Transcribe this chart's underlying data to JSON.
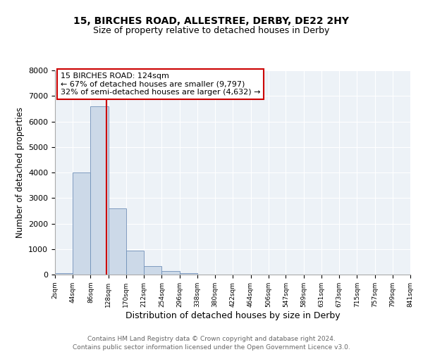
{
  "title": "15, BIRCHES ROAD, ALLESTREE, DERBY, DE22 2HY",
  "subtitle": "Size of property relative to detached houses in Derby",
  "xlabel": "Distribution of detached houses by size in Derby",
  "ylabel": "Number of detached properties",
  "bin_edges": [
    2,
    44,
    86,
    128,
    170,
    212,
    254,
    296,
    338,
    380,
    422,
    464,
    506,
    547,
    589,
    631,
    673,
    715,
    757,
    799,
    841
  ],
  "bin_heights": [
    50,
    4000,
    6600,
    2600,
    950,
    320,
    130,
    50,
    0,
    0,
    0,
    0,
    0,
    0,
    0,
    0,
    0,
    0,
    0,
    0
  ],
  "bar_color": "#ccd9e8",
  "bar_edge_color": "#7090b8",
  "property_line_x": 124,
  "property_line_color": "#cc0000",
  "annotation_title": "15 BIRCHES ROAD: 124sqm",
  "annotation_line1": "← 67% of detached houses are smaller (9,797)",
  "annotation_line2": "32% of semi-detached houses are larger (4,632) →",
  "annotation_box_edgecolor": "#cc0000",
  "ylim": [
    0,
    8000
  ],
  "yticks": [
    0,
    1000,
    2000,
    3000,
    4000,
    5000,
    6000,
    7000,
    8000
  ],
  "bg_color": "#edf2f7",
  "grid_color": "#ffffff",
  "footer_line1": "Contains HM Land Registry data © Crown copyright and database right 2024.",
  "footer_line2": "Contains public sector information licensed under the Open Government Licence v3.0."
}
